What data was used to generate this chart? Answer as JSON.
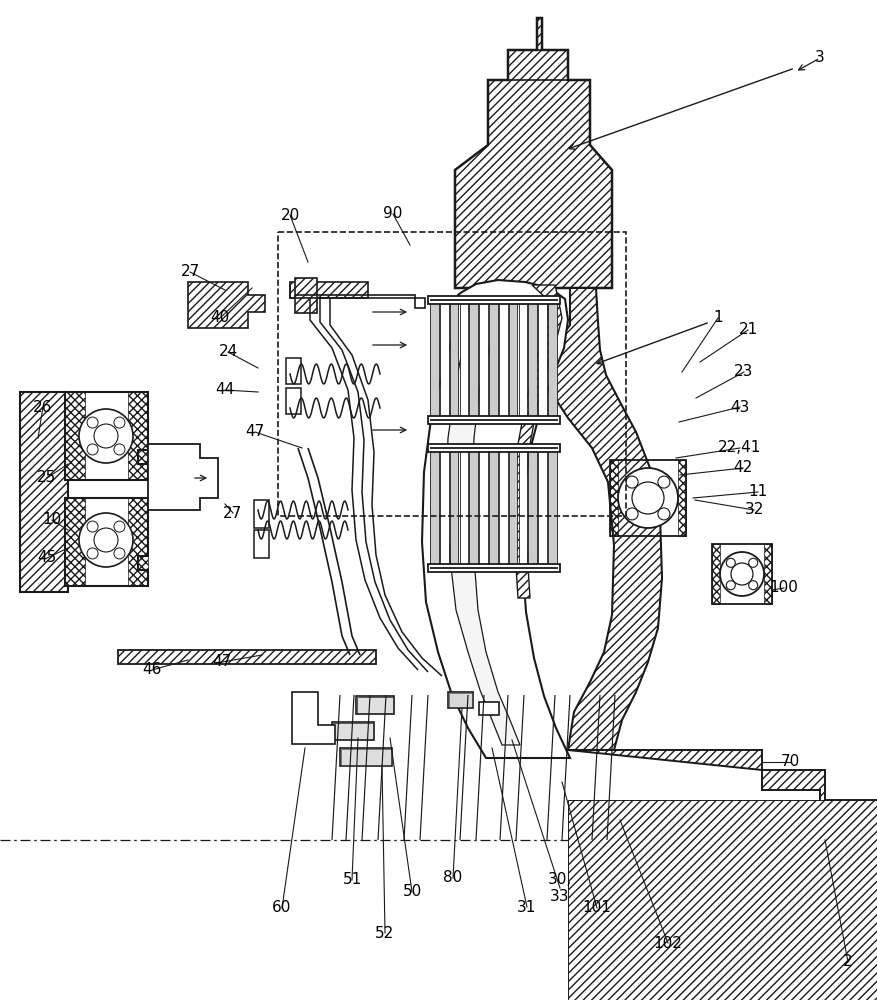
{
  "bg_color": "#ffffff",
  "line_color": "#1a1a1a",
  "figsize": [
    8.77,
    10.0
  ],
  "dpi": 100,
  "labels": [
    [
      "3",
      820,
      58
    ],
    [
      "1",
      718,
      318
    ],
    [
      "2",
      848,
      962
    ],
    [
      "10",
      52,
      520
    ],
    [
      "11",
      758,
      492
    ],
    [
      "20",
      290,
      215
    ],
    [
      "21",
      748,
      330
    ],
    [
      "22,41",
      740,
      448
    ],
    [
      "23",
      744,
      372
    ],
    [
      "24",
      228,
      352
    ],
    [
      "25",
      47,
      478
    ],
    [
      "26",
      43,
      407
    ],
    [
      "27",
      190,
      272
    ],
    [
      "27",
      233,
      513
    ],
    [
      "30,\n33",
      560,
      888
    ],
    [
      "31",
      527,
      907
    ],
    [
      "32",
      754,
      510
    ],
    [
      "40",
      220,
      318
    ],
    [
      "42",
      743,
      468
    ],
    [
      "43",
      740,
      407
    ],
    [
      "44",
      225,
      390
    ],
    [
      "45",
      47,
      558
    ],
    [
      "46",
      152,
      670
    ],
    [
      "47",
      255,
      432
    ],
    [
      "47",
      222,
      662
    ],
    [
      "50",
      412,
      892
    ],
    [
      "51",
      352,
      880
    ],
    [
      "52",
      385,
      933
    ],
    [
      "60",
      282,
      908
    ],
    [
      "70",
      790,
      762
    ],
    [
      "80",
      453,
      878
    ],
    [
      "90",
      393,
      214
    ],
    [
      "100",
      784,
      588
    ],
    [
      "101",
      597,
      908
    ],
    [
      "102",
      668,
      943
    ]
  ]
}
